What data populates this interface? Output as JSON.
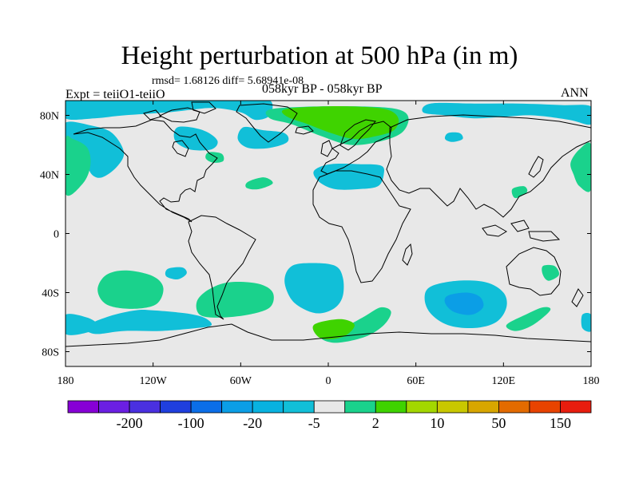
{
  "title": "Height perturbation at 500 hPa (in m)",
  "stats": "rmsd= 1.68126 diff= 5.68941e-08",
  "experiment": "Expt = teiiO1-teiiO",
  "period": "058kyr BP - 058kyr BP",
  "season": "ANN",
  "map": {
    "lon_range": [
      -180,
      180
    ],
    "lat_range": [
      -90,
      90
    ],
    "lon_ticks": [
      {
        "value": -180,
        "label": "180"
      },
      {
        "value": -120,
        "label": "120W"
      },
      {
        "value": -60,
        "label": "60W"
      },
      {
        "value": 0,
        "label": "0"
      },
      {
        "value": 60,
        "label": "60E"
      },
      {
        "value": 120,
        "label": "120E"
      },
      {
        "value": 180,
        "label": "180"
      }
    ],
    "lat_ticks": [
      {
        "value": 80,
        "label": "80N"
      },
      {
        "value": 40,
        "label": "40N"
      },
      {
        "value": 0,
        "label": "0"
      },
      {
        "value": -40,
        "label": "40S"
      },
      {
        "value": -80,
        "label": "80S"
      }
    ],
    "background_color": "#e8e8e8",
    "fields": [
      {
        "level": "-5",
        "color": "#11bfd8",
        "points": [
          [
            -180,
            90
          ],
          [
            -120,
            90
          ],
          [
            -60,
            90
          ],
          [
            -40,
            90
          ],
          [
            -40,
            80
          ],
          [
            -50,
            77
          ],
          [
            -60,
            82
          ],
          [
            -80,
            85
          ],
          [
            -110,
            82
          ],
          [
            -140,
            80
          ],
          [
            -160,
            78
          ],
          [
            -180,
            78
          ]
        ]
      },
      {
        "level": "-5",
        "color": "#11bfd8",
        "points": [
          [
            -180,
            75
          ],
          [
            -162,
            73
          ],
          [
            -148,
            68
          ],
          [
            -140,
            55
          ],
          [
            -145,
            45
          ],
          [
            -155,
            38
          ],
          [
            -162,
            40
          ],
          [
            -167,
            50
          ],
          [
            -175,
            58
          ],
          [
            -180,
            60
          ]
        ]
      },
      {
        "level": "-5",
        "color": "#11bfd8",
        "points": [
          [
            -103,
            72
          ],
          [
            -86,
            70
          ],
          [
            -76,
            63
          ],
          [
            -80,
            57
          ],
          [
            -95,
            57
          ],
          [
            -105,
            63
          ]
        ]
      },
      {
        "level": "-5",
        "color": "#11bfd8",
        "points": [
          [
            -58,
            72
          ],
          [
            -45,
            70
          ],
          [
            -30,
            68
          ],
          [
            -28,
            62
          ],
          [
            -40,
            58
          ],
          [
            -55,
            58
          ],
          [
            -62,
            64
          ]
        ]
      },
      {
        "level": "-5",
        "color": "#11bfd8",
        "points": [
          [
            -8,
            44
          ],
          [
            2,
            47
          ],
          [
            20,
            47
          ],
          [
            36,
            46
          ],
          [
            38,
            40
          ],
          [
            34,
            32
          ],
          [
            20,
            30
          ],
          [
            5,
            30
          ],
          [
            -5,
            34
          ],
          [
            -10,
            40
          ]
        ]
      },
      {
        "level": "-5",
        "color": "#11bfd8",
        "points": [
          [
            70,
            88
          ],
          [
            100,
            88
          ],
          [
            130,
            88
          ],
          [
            160,
            87
          ],
          [
            180,
            86
          ],
          [
            180,
            74
          ],
          [
            165,
            77
          ],
          [
            140,
            80
          ],
          [
            120,
            79
          ],
          [
            100,
            78
          ],
          [
            80,
            80
          ],
          [
            65,
            82
          ]
        ]
      },
      {
        "level": "-5",
        "color": "#11bfd8",
        "points": [
          [
            82,
            68
          ],
          [
            90,
            68
          ],
          [
            92,
            64
          ],
          [
            85,
            62
          ],
          [
            80,
            64
          ]
        ]
      },
      {
        "level": "-5",
        "color": "#11bfd8",
        "points": [
          [
            -110,
            -24
          ],
          [
            -100,
            -23
          ],
          [
            -97,
            -27
          ],
          [
            -103,
            -31
          ],
          [
            -111,
            -29
          ]
        ]
      },
      {
        "level": "-5",
        "color": "#11bfd8",
        "points": [
          [
            -132,
            -52
          ],
          [
            -120,
            -52
          ],
          [
            -98,
            -54
          ],
          [
            -85,
            -57
          ],
          [
            -80,
            -62
          ],
          [
            -90,
            -64
          ],
          [
            -115,
            -66
          ],
          [
            -140,
            -66
          ],
          [
            -160,
            -68
          ],
          [
            -166,
            -63
          ],
          [
            -150,
            -56
          ]
        ]
      },
      {
        "level": "-5",
        "color": "#11bfd8",
        "points": [
          [
            -25,
            -22
          ],
          [
            -10,
            -20
          ],
          [
            5,
            -22
          ],
          [
            10,
            -30
          ],
          [
            10,
            -42
          ],
          [
            5,
            -50
          ],
          [
            -5,
            -54
          ],
          [
            -15,
            -52
          ],
          [
            -25,
            -45
          ],
          [
            -30,
            -32
          ]
        ]
      },
      {
        "level": "-5",
        "color": "#11bfd8",
        "points": [
          [
            70,
            -36
          ],
          [
            88,
            -32
          ],
          [
            108,
            -33
          ],
          [
            120,
            -40
          ],
          [
            122,
            -50
          ],
          [
            115,
            -60
          ],
          [
            100,
            -64
          ],
          [
            82,
            -62
          ],
          [
            70,
            -54
          ],
          [
            66,
            -44
          ]
        ]
      },
      {
        "level": "-20",
        "color": "#0b9ee6",
        "points": [
          [
            82,
            -42
          ],
          [
            95,
            -40
          ],
          [
            104,
            -43
          ],
          [
            106,
            -50
          ],
          [
            98,
            -55
          ],
          [
            86,
            -53
          ],
          [
            80,
            -47
          ]
        ]
      },
      {
        "level": "-5",
        "color": "#11bfd8",
        "points": [
          [
            -180,
            -55
          ],
          [
            -165,
            -57
          ],
          [
            -158,
            -62
          ],
          [
            -165,
            -67
          ],
          [
            -180,
            -68
          ]
        ]
      },
      {
        "level": "-5",
        "color": "#11bfd8",
        "points": [
          [
            174,
            -55
          ],
          [
            180,
            -55
          ],
          [
            180,
            -66
          ],
          [
            174,
            -64
          ]
        ]
      },
      {
        "level": "2",
        "color": "#1ad28c",
        "points": [
          [
            -180,
            27
          ],
          [
            -168,
            34
          ],
          [
            -163,
            46
          ],
          [
            -165,
            58
          ],
          [
            -175,
            64
          ],
          [
            -180,
            63
          ]
        ]
      },
      {
        "level": "2",
        "color": "#1ad28c",
        "points": [
          [
            -55,
            35
          ],
          [
            -44,
            38
          ],
          [
            -38,
            34
          ],
          [
            -48,
            30
          ],
          [
            -56,
            31
          ]
        ]
      },
      {
        "level": "2",
        "color": "#1ad28c",
        "points": [
          [
            -82,
            55
          ],
          [
            -73,
            54
          ],
          [
            -72,
            49
          ],
          [
            -79,
            48
          ],
          [
            -84,
            51
          ]
        ]
      },
      {
        "level": "2",
        "color": "#1ad28c",
        "points": [
          [
            126,
            30
          ],
          [
            134,
            32
          ],
          [
            136,
            28
          ],
          [
            128,
            24
          ]
        ]
      },
      {
        "level": "2",
        "color": "#1ad28c",
        "points": [
          [
            166,
            48
          ],
          [
            172,
            57
          ],
          [
            180,
            60
          ],
          [
            180,
            30
          ],
          [
            172,
            32
          ],
          [
            168,
            40
          ]
        ]
      },
      {
        "level": "2",
        "color": "#1ad28c",
        "points": [
          [
            -152,
            -28
          ],
          [
            -138,
            -25
          ],
          [
            -120,
            -29
          ],
          [
            -113,
            -37
          ],
          [
            -118,
            -48
          ],
          [
            -135,
            -51
          ],
          [
            -152,
            -48
          ],
          [
            -158,
            -38
          ]
        ]
      },
      {
        "level": "2",
        "color": "#1ad28c",
        "points": [
          [
            -90,
            -46
          ],
          [
            -82,
            -38
          ],
          [
            -68,
            -33
          ],
          [
            -48,
            -34
          ],
          [
            -38,
            -40
          ],
          [
            -40,
            -50
          ],
          [
            -55,
            -55
          ],
          [
            -75,
            -57
          ],
          [
            -88,
            -55
          ]
        ]
      },
      {
        "level": "2",
        "color": "#1ad28c",
        "points": [
          [
            -5,
            -70
          ],
          [
            10,
            -64
          ],
          [
            25,
            -56
          ],
          [
            36,
            -50
          ],
          [
            43,
            -53
          ],
          [
            38,
            -62
          ],
          [
            25,
            -70
          ],
          [
            5,
            -74
          ]
        ]
      },
      {
        "level": "2",
        "color": "#1ad28c",
        "points": [
          [
            122,
            -62
          ],
          [
            135,
            -55
          ],
          [
            147,
            -50
          ],
          [
            152,
            -52
          ],
          [
            140,
            -62
          ],
          [
            128,
            -66
          ]
        ]
      },
      {
        "level": "2",
        "color": "#1ad28c",
        "points": [
          [
            147,
            -22
          ],
          [
            155,
            -22
          ],
          [
            158,
            -28
          ],
          [
            151,
            -32
          ],
          [
            147,
            -28
          ]
        ]
      },
      {
        "level": "2",
        "color": "#1ad28c",
        "points": [
          [
            -40,
            84
          ],
          [
            -10,
            86
          ],
          [
            25,
            86
          ],
          [
            48,
            84
          ],
          [
            55,
            78
          ],
          [
            50,
            68
          ],
          [
            34,
            62
          ],
          [
            15,
            60
          ],
          [
            -5,
            66
          ],
          [
            -25,
            74
          ],
          [
            -40,
            78
          ]
        ]
      },
      {
        "level": "10",
        "color": "#3fd300",
        "points": [
          [
            -30,
            84
          ],
          [
            -5,
            86
          ],
          [
            18,
            86
          ],
          [
            40,
            84
          ],
          [
            48,
            78
          ],
          [
            45,
            70
          ],
          [
            33,
            66
          ],
          [
            18,
            64
          ],
          [
            2,
            68
          ],
          [
            -14,
            74
          ],
          [
            -28,
            79
          ]
        ]
      },
      {
        "level": "10",
        "color": "#3fd300",
        "points": [
          [
            -10,
            -62
          ],
          [
            8,
            -58
          ],
          [
            18,
            -62
          ],
          [
            10,
            -70
          ],
          [
            -5,
            -71
          ]
        ]
      }
    ],
    "colorbar": {
      "levels": [
        -200,
        -150,
        -100,
        -50,
        -20,
        -10,
        -5,
        -2,
        2,
        5,
        10,
        20,
        50,
        100,
        150,
        200
      ],
      "colors": [
        "#8700d6",
        "#6b1fe3",
        "#4a30e0",
        "#1f3fde",
        "#0b6ee8",
        "#0b9ee6",
        "#08b2e0",
        "#11bfd8",
        "#e8e8e8",
        "#1ad28c",
        "#3fd300",
        "#a3d700",
        "#c9c800",
        "#d8a600",
        "#e36b00",
        "#e84300",
        "#e81d0e"
      ],
      "labels": [
        {
          "after_index": 1,
          "label": "-200"
        },
        {
          "after_index": 3,
          "label": "-100"
        },
        {
          "after_index": 5,
          "label": "-20"
        },
        {
          "after_index": 7,
          "label": "-5"
        },
        {
          "after_index": 9,
          "label": "2"
        },
        {
          "after_index": 11,
          "label": "10"
        },
        {
          "after_index": 13,
          "label": "50"
        },
        {
          "after_index": 15,
          "label": "150"
        }
      ]
    }
  }
}
